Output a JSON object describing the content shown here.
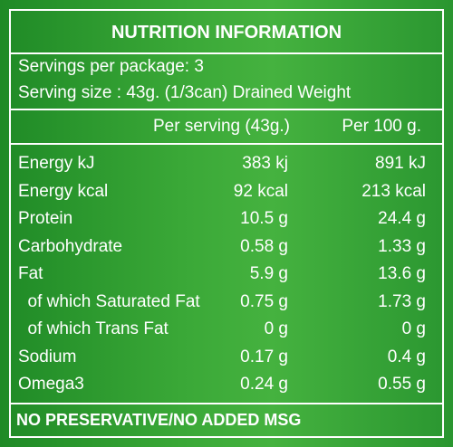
{
  "title": "NUTRITION INFORMATION",
  "servings": [
    "Servings per package: 3",
    "Serving size : 43g. (1/3can) Drained Weight"
  ],
  "table": {
    "header": [
      "Per serving (43g.)",
      "Per 100 g."
    ],
    "rows": [
      [
        "Energy kJ",
        "383 kj",
        "891 kJ"
      ],
      [
        "Energy kcal",
        "92 kcal",
        "213 kcal"
      ],
      [
        "Protein",
        "10.5 g",
        "24.4 g"
      ],
      [
        "Carbohydrate",
        "0.58 g",
        "1.33 g"
      ],
      [
        "Fat",
        "5.9 g",
        "13.6 g"
      ],
      [
        "  of which Saturated Fat",
        "0.75 g",
        "1.73 g"
      ],
      [
        "  of which Trans Fat",
        "0 g",
        "0 g"
      ],
      [
        "Sodium",
        "0.17 g",
        "0.4 g"
      ],
      [
        "Omega3",
        "0.24 g",
        "0.55 g"
      ]
    ]
  },
  "footer": "NO PRESERVATIVE/NO ADDED MSG"
}
